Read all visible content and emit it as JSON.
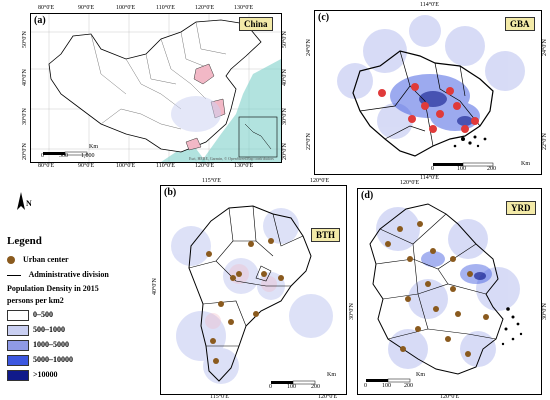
{
  "panels": {
    "a": {
      "label": "(a)",
      "tag": "China",
      "top_lon": [
        "80°0'E",
        "90°0'E",
        "100°0'E",
        "110°0'E",
        "120°0'E",
        "130°0'E"
      ],
      "bottom_lon": [
        "80°0'E",
        "90°0'E",
        "100°0'E",
        "110°0'E",
        "120°0'E",
        "130°0'E"
      ],
      "left_lat": [
        "50°0'N",
        "40°0'N",
        "30°0'N",
        "20°0'N"
      ],
      "right_lat": [
        "50°0'N",
        "40°0'N",
        "30°0'N",
        "20°0'N"
      ],
      "scale_unit": "Km",
      "scale_ticks": [
        "0",
        "500",
        "1,000"
      ],
      "credit": "Esri, HERE, Garmin, © OpenStreetMap contributors"
    },
    "b": {
      "label": "(b)",
      "tag": "BTH",
      "top_lon": [
        "115°0'E",
        "120°0'E"
      ],
      "bottom_lon": [
        "115°0'E",
        "120°0'E"
      ],
      "left_lat": [
        "40°0'N"
      ],
      "scale_unit": "Km",
      "scale_ticks": [
        "0",
        "100",
        "200"
      ]
    },
    "c": {
      "label": "(c)",
      "tag": "GBA",
      "top_lon": [
        "114°0'E"
      ],
      "bottom_lon": [
        "114°0'E"
      ],
      "left_lat": [
        "24°0'N",
        "22°0'N"
      ],
      "right_lat": [
        "24°0'N",
        "22°0'N"
      ],
      "scale_unit": "Km",
      "scale_ticks": [
        "0",
        "100",
        "200"
      ]
    },
    "d": {
      "label": "(d)",
      "tag": "YRD",
      "top_lon": [
        "120°0'E"
      ],
      "bottom_lon": [
        "120°0'E"
      ],
      "left_lat": [
        "30°0'N"
      ],
      "right_lat": [
        "30°0'N"
      ],
      "scale_unit": "Km",
      "scale_ticks": [
        "0",
        "100",
        "200"
      ]
    }
  },
  "legend": {
    "north": "N",
    "title": "Legend",
    "urban_center": "Urban center",
    "admin_division": "Administrative division",
    "density_title": "Population Density in 2015",
    "density_unit": "persons per km2",
    "classes": [
      {
        "label": "0–500",
        "color": "#ffffff"
      },
      {
        "label": "500–1000",
        "color": "#c9cff2"
      },
      {
        "label": "1000–5000",
        "color": "#8f9ae6"
      },
      {
        "label": "5000–10000",
        "color": "#3c57e0"
      },
      {
        "label": ">10000",
        "color": "#101a8a"
      }
    ]
  },
  "colors": {
    "urban_center": "#8a5a1e",
    "hotspot": "#e03a3a",
    "sea": "#5cc9c0"
  }
}
